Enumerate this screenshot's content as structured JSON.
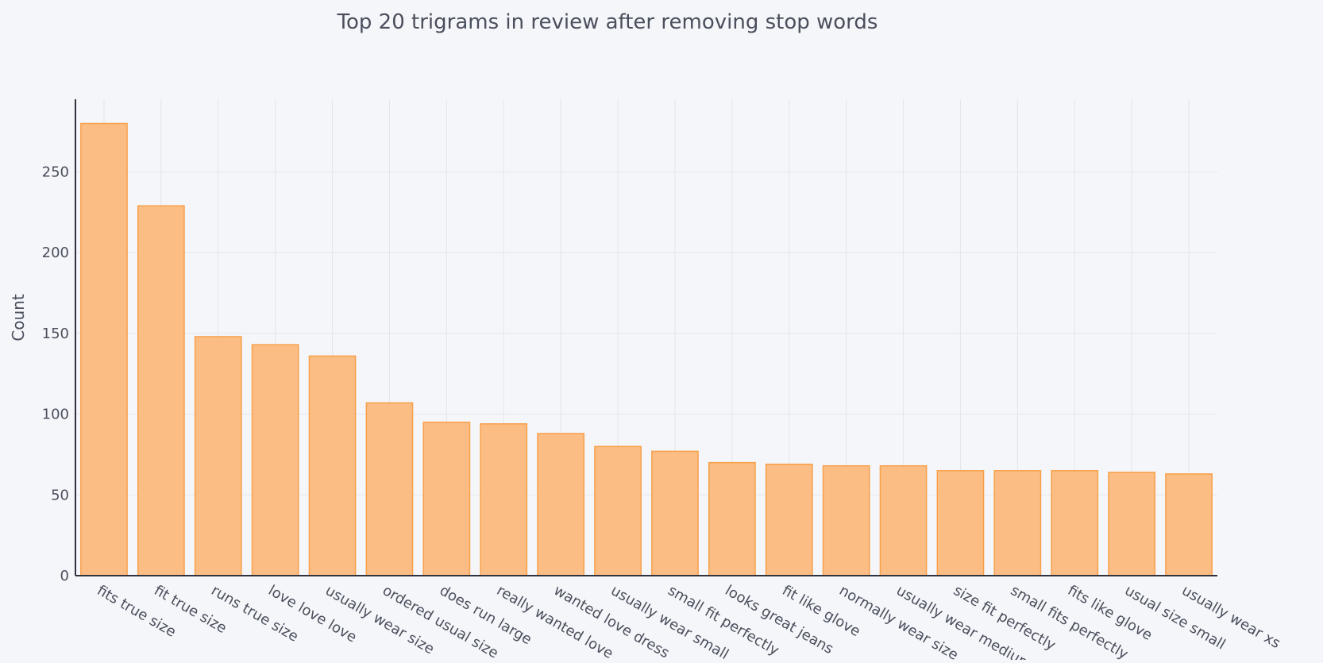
{
  "chart_data": {
    "type": "bar",
    "title": "Top 20 trigrams in review after removing stop words",
    "xlabel": "",
    "ylabel": "Count",
    "ylim": [
      0,
      295
    ],
    "yticks": [
      0,
      50,
      100,
      150,
      200,
      250
    ],
    "grid": true,
    "legend": "none",
    "categories": [
      "fits true size",
      "fit true size",
      "runs true size",
      "love love love",
      "usually wear size",
      "ordered usual size",
      "does run large",
      "really wanted love",
      "wanted love dress",
      "usually wear small",
      "small fit perfectly",
      "looks great jeans",
      "fit like glove",
      "normally wear size",
      "usually wear medium",
      "size fit perfectly",
      "small fits perfectly",
      "fits like glove",
      "usual size small",
      "usually wear xs"
    ],
    "values": [
      280,
      229,
      148,
      143,
      136,
      107,
      95,
      94,
      88,
      80,
      77,
      70,
      69,
      68,
      68,
      65,
      65,
      65,
      64,
      63
    ],
    "colors": {
      "bar_fill": "#fbbd84",
      "bar_stroke": "#f7a04a",
      "grid": "#e3e5ec",
      "axis": "#2f3340",
      "text": "#4a4f5c",
      "background": "#f5f6fa"
    }
  }
}
